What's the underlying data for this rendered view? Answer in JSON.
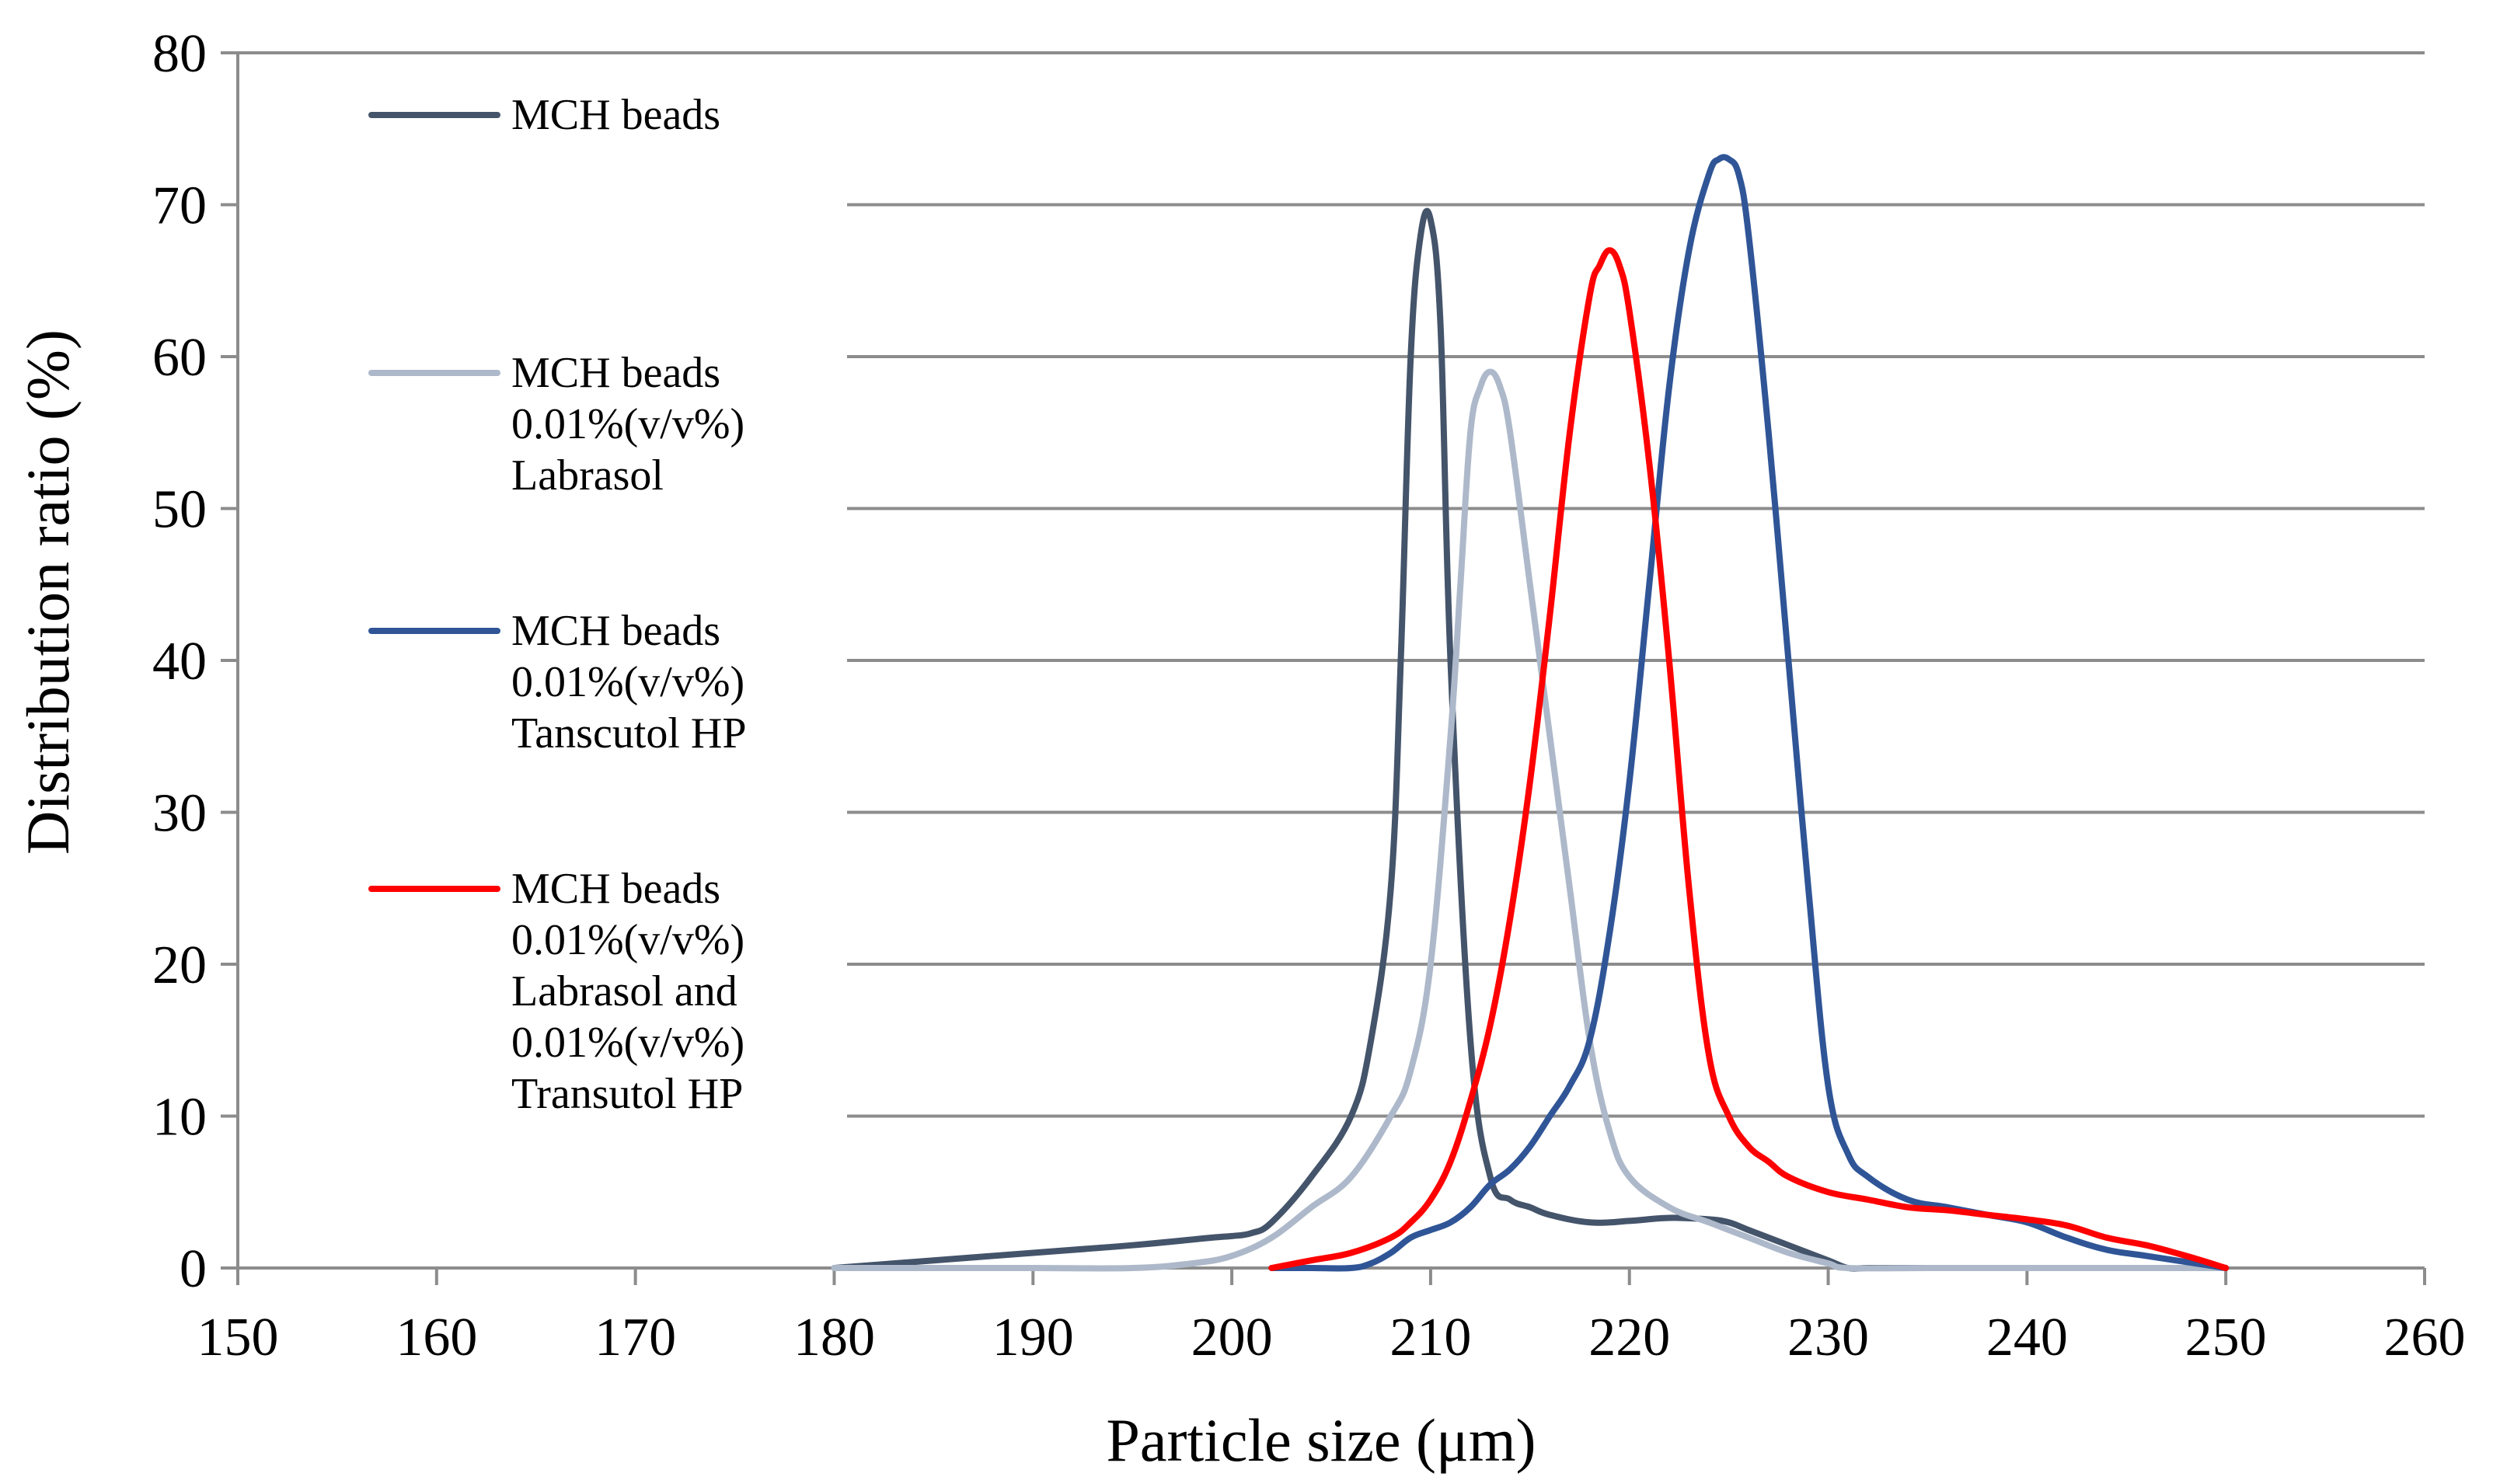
{
  "chart_data": {
    "type": "line",
    "title": "",
    "xlabel": "Particle size (μm)",
    "ylabel": "Distribution ratio (%)",
    "xlim": [
      150,
      260
    ],
    "ylim": [
      0,
      80
    ],
    "xticks": [
      "150",
      "160",
      "170",
      "180",
      "190",
      "200",
      "210",
      "220",
      "230",
      "240",
      "250",
      "260"
    ],
    "yticks": [
      "0",
      "10",
      "20",
      "30",
      "40",
      "50",
      "60",
      "70",
      "80"
    ],
    "grid": true,
    "legend_position": "top-left",
    "series": [
      {
        "name": "MCH beads",
        "legend_lines": [
          "MCH beads"
        ],
        "color": "#44546a",
        "x": [
          180,
          185,
          190,
          195,
          199,
          200,
          201,
          202,
          204,
          206,
          207,
          208,
          208.5,
          209,
          209.5,
          210,
          210.5,
          211,
          212,
          213,
          214,
          215,
          216,
          218,
          220,
          222,
          224,
          225,
          226,
          228,
          230,
          231,
          232,
          234,
          236,
          238,
          240,
          242,
          244,
          246,
          248,
          250
        ],
        "y": [
          0,
          0.5,
          1,
          1.5,
          2,
          2.1,
          2.3,
          3,
          6,
          10,
          15,
          25,
          40,
          60,
          68,
          69,
          62,
          40,
          15,
          6,
          4.5,
          4,
          3.5,
          3,
          3.1,
          3.3,
          3.2,
          3,
          2.5,
          1.5,
          0.5,
          0,
          0,
          0,
          0,
          0,
          0,
          0,
          0,
          0,
          0,
          0
        ]
      },
      {
        "name": "MCH beads 0.01%(v/v%) Labrasol",
        "legend_lines": [
          "MCH beads",
          "0.01%(v/v%)",
          "Labrasol"
        ],
        "color": "#adb9ca",
        "x": [
          180,
          185,
          190,
          195,
          198,
          200,
          202,
          204,
          206,
          208,
          209,
          210,
          211,
          211.5,
          212,
          212.5,
          213,
          213.5,
          214,
          215,
          216,
          217,
          218,
          219,
          220,
          222,
          224,
          226,
          228,
          230,
          231,
          235,
          240,
          245,
          250
        ],
        "y": [
          0,
          0,
          0,
          0,
          0.3,
          0.8,
          2,
          4,
          6,
          10,
          13,
          20,
          35,
          45,
          55,
          58,
          59,
          58,
          55,
          45,
          35,
          25,
          15,
          9,
          6,
          4,
          3,
          2,
          1,
          0.3,
          0,
          0,
          0,
          0,
          0
        ]
      },
      {
        "name": "MCH beads 0.01%(v/v%) Tanscutol HP",
        "legend_lines": [
          "MCH beads",
          "0.01%(v/v%)",
          "Tanscutol HP"
        ],
        "color": "#2f5597",
        "x": [
          202,
          204,
          206,
          207,
          208,
          209,
          210,
          211,
          212,
          213,
          214,
          215,
          216,
          217,
          218,
          219,
          220,
          221,
          222,
          223,
          224,
          224.5,
          225,
          225.5,
          226,
          227,
          228,
          229,
          230,
          231,
          232,
          234,
          236,
          238,
          240,
          242,
          244,
          246,
          248,
          250
        ],
        "y": [
          0,
          0,
          0,
          0.3,
          1,
          2,
          2.5,
          3,
          4,
          5.5,
          6.5,
          8,
          10,
          12,
          15,
          22,
          32,
          45,
          58,
          67,
          72,
          73,
          73,
          72,
          68,
          55,
          40,
          25,
          12,
          7.5,
          6,
          4.5,
          4,
          3.5,
          3,
          2,
          1.2,
          0.8,
          0.4,
          0
        ]
      },
      {
        "name": "MCH beads 0.01%(v/v%) Labrasol and 0.01%(v/v%) Transutol HP",
        "legend_lines": [
          "MCH beads",
          "0.01%(v/v%)",
          "Labrasol and",
          "0.01%(v/v%)",
          "Transutol HP"
        ],
        "color": "#ff0000",
        "x": [
          202,
          204,
          206,
          208,
          209,
          210,
          211,
          212,
          213,
          214,
          215,
          216,
          217,
          218,
          218.5,
          219,
          219.5,
          220,
          221,
          222,
          223,
          224,
          225,
          226,
          227,
          228,
          230,
          232,
          234,
          236,
          238,
          240,
          242,
          244,
          246,
          248,
          250
        ],
        "y": [
          0,
          0.5,
          1,
          2,
          3,
          4.5,
          7,
          11,
          16,
          23,
          32,
          43,
          55,
          64,
          66,
          67,
          66,
          63,
          53,
          40,
          25,
          14,
          10,
          8,
          7,
          6,
          5,
          4.5,
          4,
          3.8,
          3.5,
          3.2,
          2.8,
          2,
          1.5,
          0.8,
          0
        ]
      }
    ]
  }
}
